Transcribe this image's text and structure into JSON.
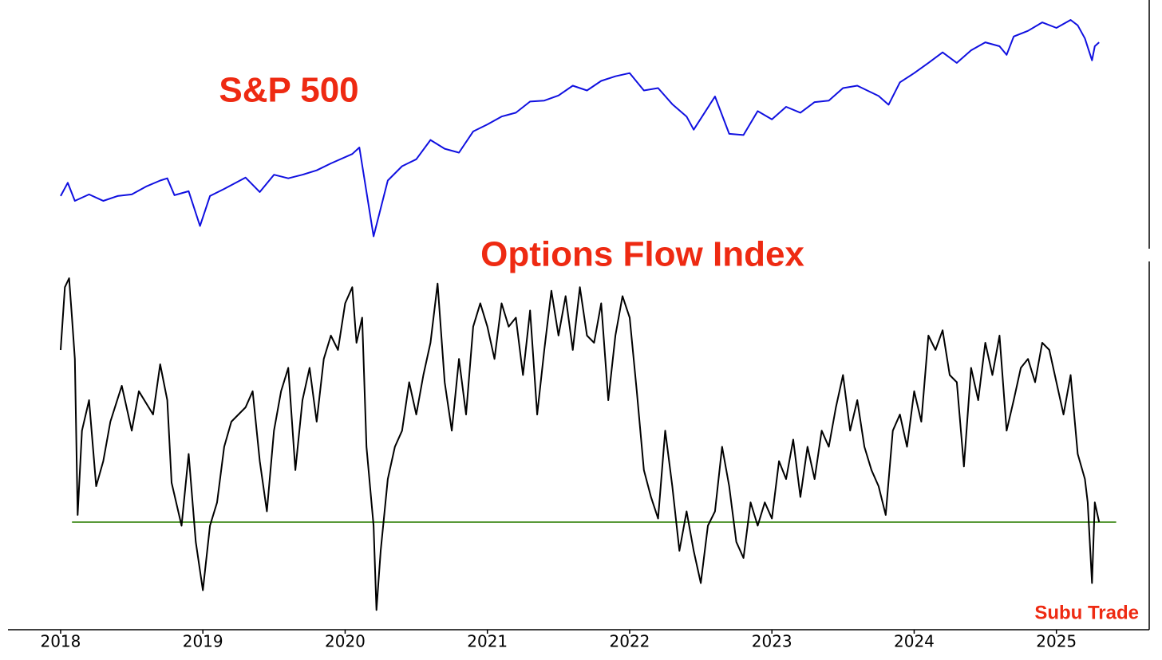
{
  "chart_data": [
    {
      "type": "line",
      "title": "S&P 500",
      "log": true,
      "ylim": [
        2100,
        6400
      ],
      "xlim": [
        2017.63,
        2025.86
      ],
      "series": [
        {
          "color": "#1010e0",
          "x": [
            2018.0,
            2018.05,
            2018.1,
            2018.2,
            2018.3,
            2018.4,
            2018.5,
            2018.6,
            2018.7,
            2018.75,
            2018.8,
            2018.9,
            2018.98,
            2019.05,
            2019.15,
            2019.3,
            2019.4,
            2019.5,
            2019.6,
            2019.7,
            2019.8,
            2019.9,
            2020.05,
            2020.1,
            2020.2,
            2020.3,
            2020.4,
            2020.5,
            2020.6,
            2020.7,
            2020.8,
            2020.9,
            2021.0,
            2021.1,
            2021.2,
            2021.3,
            2021.4,
            2021.5,
            2021.6,
            2021.7,
            2021.8,
            2021.9,
            2022.0,
            2022.1,
            2022.2,
            2022.3,
            2022.4,
            2022.45,
            2022.6,
            2022.7,
            2022.8,
            2022.9,
            2023.0,
            2023.1,
            2023.2,
            2023.3,
            2023.4,
            2023.5,
            2023.6,
            2023.75,
            2023.82,
            2023.9,
            2024.0,
            2024.1,
            2024.2,
            2024.3,
            2024.4,
            2024.5,
            2024.6,
            2024.65,
            2024.7,
            2024.8,
            2024.9,
            2025.0,
            2025.1,
            2025.15,
            2025.2,
            2025.25,
            2025.27,
            2025.3
          ],
          "values": [
            2700,
            2870,
            2640,
            2720,
            2640,
            2700,
            2720,
            2820,
            2900,
            2930,
            2710,
            2760,
            2350,
            2700,
            2790,
            2940,
            2750,
            2980,
            2930,
            2980,
            3040,
            3140,
            3280,
            3380,
            2240,
            2900,
            3100,
            3200,
            3500,
            3360,
            3300,
            3640,
            3760,
            3900,
            3970,
            4180,
            4200,
            4300,
            4500,
            4400,
            4600,
            4700,
            4770,
            4400,
            4450,
            4130,
            3900,
            3670,
            4280,
            3600,
            3580,
            4000,
            3850,
            4080,
            3970,
            4170,
            4200,
            4450,
            4500,
            4290,
            4120,
            4570,
            4770,
            5000,
            5250,
            5000,
            5300,
            5500,
            5400,
            5190,
            5650,
            5800,
            6030,
            5880,
            6100,
            5950,
            5600,
            5060,
            5400,
            5500
          ]
        }
      ]
    },
    {
      "type": "line",
      "title": "Options Flow Index",
      "ylim": [
        0,
        100
      ],
      "xlim": [
        2017.63,
        2025.86
      ],
      "xticks": [
        2018,
        2019,
        2020,
        2021,
        2022,
        2023,
        2024,
        2025
      ],
      "reference_line": {
        "value": 30,
        "x": [
          2018.08,
          2025.42
        ],
        "color": "#5a9a3a"
      },
      "series": [
        {
          "color": "#000000",
          "x": [
            2018.0,
            2018.03,
            2018.06,
            2018.08,
            2018.1,
            2018.12,
            2018.15,
            2018.2,
            2018.25,
            2018.3,
            2018.35,
            2018.43,
            2018.5,
            2018.55,
            2018.65,
            2018.7,
            2018.75,
            2018.78,
            2018.85,
            2018.9,
            2018.95,
            2019.0,
            2019.05,
            2019.1,
            2019.15,
            2019.2,
            2019.3,
            2019.35,
            2019.4,
            2019.45,
            2019.5,
            2019.55,
            2019.6,
            2019.65,
            2019.7,
            2019.75,
            2019.8,
            2019.85,
            2019.9,
            2019.95,
            2020.0,
            2020.05,
            2020.08,
            2020.12,
            2020.15,
            2020.2,
            2020.22,
            2020.25,
            2020.3,
            2020.35,
            2020.4,
            2020.45,
            2020.5,
            2020.55,
            2020.6,
            2020.65,
            2020.7,
            2020.75,
            2020.8,
            2020.85,
            2020.9,
            2020.95,
            2021.0,
            2021.05,
            2021.1,
            2021.15,
            2021.2,
            2021.25,
            2021.3,
            2021.35,
            2021.4,
            2021.45,
            2021.5,
            2021.55,
            2021.6,
            2021.65,
            2021.7,
            2021.75,
            2021.8,
            2021.85,
            2021.9,
            2021.95,
            2022.0,
            2022.05,
            2022.1,
            2022.15,
            2022.2,
            2022.25,
            2022.3,
            2022.35,
            2022.4,
            2022.45,
            2022.5,
            2022.55,
            2022.6,
            2022.65,
            2022.7,
            2022.75,
            2022.8,
            2022.85,
            2022.9,
            2022.95,
            2023.0,
            2023.05,
            2023.1,
            2023.15,
            2023.2,
            2023.25,
            2023.3,
            2023.35,
            2023.4,
            2023.45,
            2023.5,
            2023.55,
            2023.6,
            2023.65,
            2023.7,
            2023.75,
            2023.8,
            2023.85,
            2023.9,
            2023.95,
            2024.0,
            2024.05,
            2024.1,
            2024.15,
            2024.2,
            2024.25,
            2024.3,
            2024.35,
            2024.4,
            2024.45,
            2024.5,
            2024.55,
            2024.6,
            2024.65,
            2024.7,
            2024.75,
            2024.8,
            2024.85,
            2024.9,
            2024.95,
            2025.0,
            2025.05,
            2025.1,
            2025.15,
            2025.2,
            2025.22,
            2025.25,
            2025.27,
            2025.3
          ],
          "values": [
            78,
            95.5,
            98,
            87,
            75.5,
            32,
            55.5,
            64,
            40,
            47,
            58,
            68,
            55.5,
            66.5,
            60,
            74,
            64,
            41,
            29,
            49,
            24.5,
            11,
            29,
            35.5,
            51,
            58,
            62,
            66.5,
            47,
            33,
            55.5,
            66.5,
            73,
            44.5,
            64,
            73,
            58,
            75.5,
            82,
            78,
            91,
            95.5,
            80,
            87,
            51,
            29,
            5.5,
            22,
            42,
            51,
            55.5,
            69,
            60,
            71,
            80,
            96.5,
            69,
            55.5,
            75.5,
            60,
            84.5,
            91,
            84.5,
            75.5,
            91,
            84.5,
            87,
            71,
            89,
            60,
            78,
            94.5,
            82,
            93,
            78,
            95.5,
            82,
            80,
            91,
            64,
            82,
            93,
            87,
            66.5,
            44.5,
            37,
            31,
            55.5,
            40,
            22,
            33,
            22,
            13,
            29,
            33,
            51,
            40,
            24.5,
            20,
            35.5,
            29,
            35.5,
            31,
            47,
            42,
            53,
            37,
            51,
            42,
            55.5,
            51,
            62,
            71,
            55.5,
            64,
            51,
            44.5,
            40,
            32,
            55.5,
            60,
            51,
            66.5,
            58,
            82,
            78,
            83.5,
            71,
            69,
            45.5,
            73,
            64,
            80,
            71,
            82,
            55.5,
            64,
            73,
            75.5,
            69,
            80,
            78,
            69,
            60,
            71,
            49,
            42,
            35.5,
            13,
            35.5,
            30
          ]
        }
      ]
    }
  ],
  "watermark": "Subu Trade"
}
